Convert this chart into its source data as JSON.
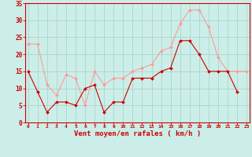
{
  "x": [
    0,
    1,
    2,
    3,
    4,
    5,
    6,
    7,
    8,
    9,
    10,
    11,
    12,
    13,
    14,
    15,
    16,
    17,
    18,
    19,
    20,
    21,
    22,
    23
  ],
  "wind_avg": [
    15,
    9,
    3,
    6,
    6,
    5,
    10,
    11,
    3,
    6,
    6,
    13,
    13,
    13,
    15,
    16,
    24,
    24,
    20,
    15,
    15,
    15,
    9,
    null
  ],
  "wind_gust": [
    23,
    23,
    11,
    8,
    14,
    13,
    5,
    15,
    11,
    13,
    13,
    15,
    16,
    17,
    21,
    22,
    29,
    33,
    33,
    28,
    19,
    15,
    15,
    15
  ],
  "bg_color": "#cceee8",
  "grid_color": "#aad4ce",
  "line_avg_color": "#cc0000",
  "line_gust_color": "#ff9999",
  "xlabel": "Vent moyen/en rafales ( km/h )",
  "xlabel_color": "#cc0000",
  "ylim": [
    0,
    35
  ],
  "yticks": [
    0,
    5,
    10,
    15,
    20,
    25,
    30,
    35
  ],
  "xticks": [
    0,
    1,
    2,
    3,
    4,
    5,
    6,
    7,
    8,
    9,
    10,
    11,
    12,
    13,
    14,
    15,
    16,
    17,
    18,
    19,
    20,
    21,
    22,
    23
  ],
  "tick_color": "#cc0000",
  "axis_line_color": "#cc0000",
  "marker_size": 2.0,
  "line_width": 0.8
}
